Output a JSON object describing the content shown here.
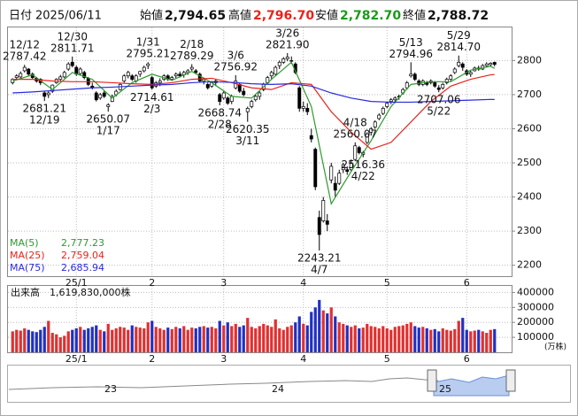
{
  "header": {
    "date_label": "日付",
    "date": "2025/06/11",
    "open_label": "始値",
    "open": "2,794.65",
    "high_label": "高値",
    "high": "2,796.70",
    "low_label": "安値",
    "low": "2,782.70",
    "close_label": "終値",
    "close": "2,788.72"
  },
  "chart_data": [
    {
      "type": "candlestick",
      "ohlc": [
        [
          2735,
          2748,
          2730,
          2745
        ],
        [
          2750,
          2760,
          2742,
          2755
        ],
        [
          2752,
          2768,
          2748,
          2762
        ],
        [
          2770,
          2787.42,
          2765,
          2780
        ],
        [
          2775,
          2778,
          2755,
          2760
        ],
        [
          2760,
          2765,
          2745,
          2750
        ],
        [
          2748,
          2752,
          2735,
          2740
        ],
        [
          2745,
          2748,
          2728,
          2735
        ],
        [
          2705,
          2710,
          2681.21,
          2695
        ],
        [
          2700,
          2710,
          2690,
          2705
        ],
        [
          2710,
          2730,
          2705,
          2728
        ],
        [
          2735,
          2748,
          2732,
          2745
        ],
        [
          2745,
          2758,
          2740,
          2752
        ],
        [
          2752,
          2770,
          2748,
          2765
        ],
        [
          2775,
          2795,
          2770,
          2790
        ],
        [
          2795,
          2811.71,
          2780,
          2785
        ],
        [
          2780,
          2785,
          2755,
          2760
        ],
        [
          2762,
          2780,
          2758,
          2775
        ],
        [
          2765,
          2770,
          2745,
          2750
        ],
        [
          2748,
          2752,
          2725,
          2730
        ],
        [
          2725,
          2735,
          2715,
          2720
        ],
        [
          2705,
          2710,
          2680,
          2685
        ],
        [
          2690,
          2705,
          2685,
          2700
        ],
        [
          2705,
          2712,
          2690,
          2695
        ],
        [
          2665,
          2675,
          2650.07,
          2670
        ],
        [
          2680,
          2700,
          2678,
          2695
        ],
        [
          2700,
          2715,
          2695,
          2710
        ],
        [
          2715,
          2735,
          2712,
          2730
        ],
        [
          2740,
          2760,
          2735,
          2755
        ],
        [
          2755,
          2770,
          2748,
          2765
        ],
        [
          2755,
          2760,
          2740,
          2745
        ],
        [
          2740,
          2760,
          2735,
          2755
        ],
        [
          2760,
          2770,
          2752,
          2768
        ],
        [
          2770,
          2785,
          2765,
          2780
        ],
        [
          2785,
          2795.21,
          2775,
          2790
        ],
        [
          2750,
          2755,
          2714.61,
          2720
        ],
        [
          2725,
          2740,
          2720,
          2735
        ],
        [
          2735,
          2748,
          2725,
          2740
        ],
        [
          2745,
          2760,
          2740,
          2755
        ],
        [
          2755,
          2760,
          2740,
          2745
        ],
        [
          2745,
          2755,
          2740,
          2750
        ],
        [
          2755,
          2765,
          2748,
          2760
        ],
        [
          2760,
          2768,
          2750,
          2755
        ],
        [
          2758,
          2770,
          2750,
          2765
        ],
        [
          2765,
          2775,
          2758,
          2770
        ],
        [
          2775,
          2789.29,
          2770,
          2780
        ],
        [
          2770,
          2775,
          2760,
          2765
        ],
        [
          2760,
          2765,
          2735,
          2740
        ],
        [
          2740,
          2750,
          2730,
          2745
        ],
        [
          2730,
          2735,
          2715,
          2720
        ],
        [
          2725,
          2740,
          2720,
          2735
        ],
        [
          2735,
          2745,
          2725,
          2740
        ],
        [
          2700,
          2705,
          2668.74,
          2680
        ],
        [
          2690,
          2710,
          2685,
          2705
        ],
        [
          2690,
          2695,
          2670,
          2675
        ],
        [
          2680,
          2700,
          2672,
          2695
        ],
        [
          2720,
          2756.92,
          2715,
          2740
        ],
        [
          2730,
          2735,
          2705,
          2710
        ],
        [
          2710,
          2720,
          2695,
          2700
        ],
        [
          2650,
          2665,
          2620.35,
          2660
        ],
        [
          2665,
          2685,
          2660,
          2680
        ],
        [
          2685,
          2700,
          2680,
          2695
        ],
        [
          2695,
          2710,
          2685,
          2705
        ],
        [
          2715,
          2735,
          2710,
          2730
        ],
        [
          2735,
          2755,
          2730,
          2750
        ],
        [
          2755,
          2770,
          2745,
          2765
        ],
        [
          2760,
          2785,
          2755,
          2780
        ],
        [
          2785,
          2800,
          2775,
          2795
        ],
        [
          2795,
          2810,
          2790,
          2805
        ],
        [
          2805,
          2821.9,
          2798,
          2810
        ],
        [
          2800,
          2812,
          2790,
          2800
        ],
        [
          2790,
          2795,
          2760,
          2765
        ],
        [
          2720,
          2725,
          2650,
          2660
        ],
        [
          2660,
          2680,
          2650,
          2665
        ],
        [
          2660,
          2675,
          2640,
          2650
        ],
        [
          2580,
          2600,
          2560,
          2570
        ],
        [
          2540,
          2545,
          2420,
          2430
        ],
        [
          2340,
          2360,
          2243.21,
          2290
        ],
        [
          2330,
          2400,
          2325,
          2390
        ],
        [
          2330,
          2350,
          2300,
          2320
        ],
        [
          2450,
          2500,
          2440,
          2490
        ],
        [
          2440,
          2460,
          2400,
          2420
        ],
        [
          2440,
          2480,
          2435,
          2470
        ],
        [
          2480,
          2500,
          2470,
          2495
        ],
        [
          2480,
          2490,
          2465,
          2475
        ],
        [
          2480,
          2510,
          2475,
          2500
        ],
        [
          2510,
          2560.07,
          2505,
          2550
        ],
        [
          2545,
          2550,
          2525,
          2530
        ],
        [
          2525,
          2535,
          2516.36,
          2530
        ],
        [
          2560,
          2590,
          2555,
          2585
        ],
        [
          2590,
          2605,
          2580,
          2600
        ],
        [
          2605,
          2625,
          2600,
          2620
        ],
        [
          2630,
          2645,
          2625,
          2640
        ],
        [
          2645,
          2665,
          2640,
          2660
        ],
        [
          2665,
          2680,
          2660,
          2675
        ],
        [
          2680,
          2690,
          2672,
          2685
        ],
        [
          2685,
          2695,
          2675,
          2690
        ],
        [
          2695,
          2700,
          2685,
          2695
        ],
        [
          2705,
          2720,
          2700,
          2715
        ],
        [
          2720,
          2740,
          2715,
          2735
        ],
        [
          2755,
          2794.96,
          2750,
          2760
        ],
        [
          2760,
          2765,
          2740,
          2745
        ],
        [
          2740,
          2745,
          2725,
          2730
        ],
        [
          2730,
          2745,
          2725,
          2740
        ],
        [
          2735,
          2740,
          2725,
          2730
        ],
        [
          2735,
          2745,
          2730,
          2740
        ],
        [
          2735,
          2740,
          2720,
          2725
        ],
        [
          2720,
          2728,
          2707.06,
          2715
        ],
        [
          2720,
          2735,
          2715,
          2730
        ],
        [
          2735,
          2750,
          2730,
          2745
        ],
        [
          2745,
          2760,
          2740,
          2755
        ],
        [
          2765,
          2780,
          2760,
          2775
        ],
        [
          2785,
          2814.7,
          2780,
          2795
        ],
        [
          2790,
          2795,
          2770,
          2780
        ],
        [
          2770,
          2775,
          2755,
          2760
        ],
        [
          2760,
          2770,
          2752,
          2765
        ],
        [
          2770,
          2782,
          2768,
          2778
        ],
        [
          2778,
          2785,
          2770,
          2775
        ],
        [
          2775,
          2790,
          2772,
          2785
        ],
        [
          2785,
          2795,
          2780,
          2790
        ],
        [
          2788,
          2795,
          2782,
          2792
        ],
        [
          2794.65,
          2796.7,
          2782.7,
          2788.72
        ]
      ],
      "series": [
        {
          "name": "MA(5)",
          "color": "#2e9a2e",
          "latest": "2,777.23",
          "x": [
            0,
            5,
            10,
            15,
            20,
            25,
            30,
            35,
            40,
            45,
            50,
            55,
            60,
            65,
            70,
            75,
            80,
            85,
            90,
            95,
            100,
            105,
            110,
            115,
            120,
            121
          ],
          "values": [
            2740,
            2758,
            2715,
            2765,
            2745,
            2690,
            2735,
            2760,
            2742,
            2768,
            2735,
            2695,
            2690,
            2745,
            2795,
            2665,
            2380,
            2475,
            2565,
            2665,
            2730,
            2738,
            2738,
            2772,
            2783,
            2777.23
          ]
        },
        {
          "name": "MA(25)",
          "color": "#e8231c",
          "latest": "2,759.04",
          "x": [
            0,
            5,
            10,
            15,
            20,
            25,
            30,
            35,
            40,
            45,
            50,
            55,
            60,
            65,
            70,
            75,
            80,
            85,
            90,
            95,
            100,
            105,
            110,
            115,
            120,
            121
          ],
          "values": [
            2745,
            2745,
            2740,
            2738,
            2738,
            2735,
            2732,
            2730,
            2735,
            2745,
            2748,
            2735,
            2720,
            2715,
            2735,
            2730,
            2650,
            2590,
            2540,
            2560,
            2620,
            2680,
            2725,
            2745,
            2758,
            2759.04
          ]
        },
        {
          "name": "MA(75)",
          "color": "#2a2ae0",
          "latest": "2,685.94",
          "x": [
            0,
            5,
            10,
            15,
            20,
            25,
            30,
            35,
            40,
            45,
            50,
            55,
            60,
            65,
            70,
            75,
            80,
            85,
            90,
            95,
            100,
            105,
            110,
            115,
            120,
            121
          ],
          "values": [
            2705,
            2708,
            2712,
            2716,
            2720,
            2722,
            2725,
            2728,
            2730,
            2735,
            2738,
            2736,
            2732,
            2730,
            2732,
            2725,
            2705,
            2690,
            2680,
            2678,
            2678,
            2680,
            2682,
            2684,
            2686,
            2685.94
          ]
        }
      ],
      "annotations": [
        {
          "date": "12/12",
          "value": 2787.42,
          "label": "2787.42"
        },
        {
          "date": "12/19",
          "value": 2681.21,
          "label": "2681.21"
        },
        {
          "date": "12/30",
          "value": 2811.71,
          "label": "2811.71"
        },
        {
          "date": "1/17",
          "value": 2650.07,
          "label": "2650.07"
        },
        {
          "date": "1/31",
          "value": 2795.21,
          "label": "2795.21"
        },
        {
          "date": "2/3",
          "value": 2714.61,
          "label": "2714.61"
        },
        {
          "date": "2/18",
          "value": 2789.29,
          "label": "2789.29"
        },
        {
          "date": "2/28",
          "value": 2668.74,
          "label": "2668.74"
        },
        {
          "date": "3/6",
          "value": 2756.92,
          "label": "2756.92"
        },
        {
          "date": "3/11",
          "value": 2620.35,
          "label": "2620.35"
        },
        {
          "date": "3/26",
          "value": 2821.9,
          "label": "2821.90"
        },
        {
          "date": "4/7",
          "value": 2243.21,
          "label": "2243.21"
        },
        {
          "date": "4/18",
          "value": 2560.07,
          "label": "2560.07"
        },
        {
          "date": "4/22",
          "value": 2516.36,
          "label": "2516.36"
        },
        {
          "date": "5/13",
          "value": 2794.96,
          "label": "2794.96"
        },
        {
          "date": "5/22",
          "value": 2707.06,
          "label": "2707.06"
        },
        {
          "date": "5/29",
          "value": 2814.7,
          "label": "2814.70"
        }
      ],
      "xticks": [
        {
          "value": 16,
          "label": "25/1"
        },
        {
          "value": 35,
          "label": "2"
        },
        {
          "value": 53,
          "label": "3"
        },
        {
          "value": 73,
          "label": "4"
        },
        {
          "value": 94,
          "label": "5"
        },
        {
          "value": 114,
          "label": "6"
        }
      ],
      "ylim": [
        2168,
        2897
      ],
      "yticks": [
        2200,
        2300,
        2400,
        2500,
        2600,
        2700,
        2800
      ],
      "grid": true
    },
    {
      "type": "volume",
      "title": "出来高　1,619,830,000株",
      "unit": "(万株)",
      "values": [
        140000,
        150000,
        145000,
        160000,
        150000,
        140000,
        135000,
        150000,
        170000,
        210000,
        130000,
        120000,
        100000,
        110000,
        140000,
        150000,
        160000,
        170000,
        150000,
        160000,
        170000,
        180000,
        150000,
        140000,
        190000,
        150000,
        160000,
        170000,
        165000,
        150000,
        180000,
        170000,
        165000,
        160000,
        200000,
        210000,
        170000,
        160000,
        150000,
        165000,
        155000,
        170000,
        160000,
        175000,
        150000,
        165000,
        160000,
        170000,
        175000,
        165000,
        170000,
        160000,
        210000,
        180000,
        200000,
        175000,
        190000,
        170000,
        180000,
        230000,
        170000,
        160000,
        175000,
        190000,
        180000,
        170000,
        220000,
        160000,
        150000,
        170000,
        180000,
        200000,
        240000,
        190000,
        180000,
        270000,
        300000,
        350000,
        280000,
        260000,
        300000,
        240000,
        200000,
        190000,
        180000,
        170000,
        180000,
        160000,
        165000,
        190000,
        175000,
        170000,
        160000,
        175000,
        160000,
        150000,
        170000,
        175000,
        180000,
        190000,
        200000,
        175000,
        165000,
        170000,
        160000,
        150000,
        155000,
        140000,
        160000,
        150000,
        145000,
        155000,
        210000,
        230000,
        150000,
        140000,
        145000,
        150000,
        140000,
        130000,
        150000,
        155000
      ],
      "up_color": "#e03030",
      "down_color": "#2030c0",
      "xticks": [
        {
          "value": 16,
          "label": "25/1"
        },
        {
          "value": 35,
          "label": "2"
        },
        {
          "value": 53,
          "label": "3"
        },
        {
          "value": 73,
          "label": "4"
        },
        {
          "value": 94,
          "label": "5"
        },
        {
          "value": 114,
          "label": "6"
        }
      ],
      "ylim": [
        0,
        444000
      ],
      "yticks": [
        100000,
        200000,
        300000,
        400000
      ],
      "grid": true
    }
  ],
  "navigator": {
    "labels": [
      "23",
      "24",
      "25"
    ]
  }
}
